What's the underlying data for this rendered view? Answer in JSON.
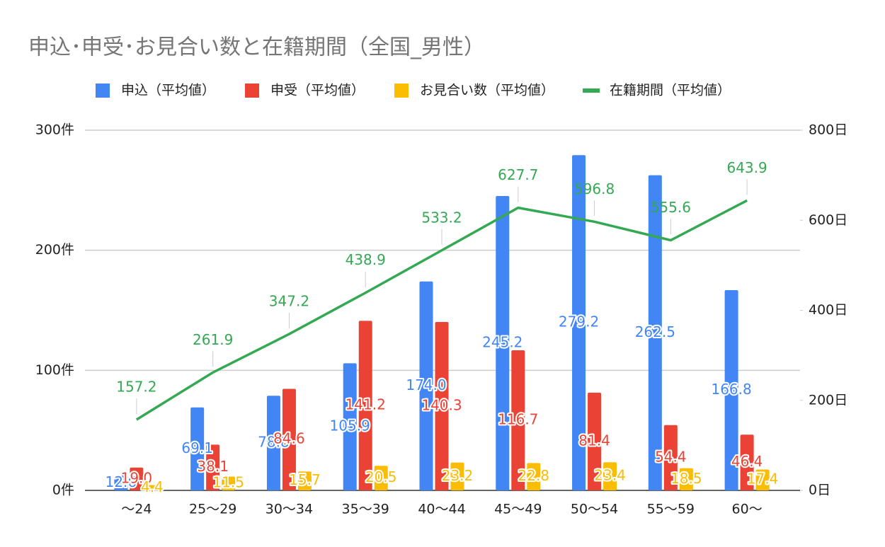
{
  "chart_data": {
    "type": "bar",
    "title": "申込･申受･お見合い数と在籍期間（全国_男性）",
    "categories": [
      "〜24",
      "25〜29",
      "30〜34",
      "35〜39",
      "40〜44",
      "45〜49",
      "50〜54",
      "55〜59",
      "60〜"
    ],
    "series": [
      {
        "name": "申込（平均値）",
        "type": "bar",
        "color": "#4285f4",
        "values": [
          12.6,
          69.1,
          78.8,
          105.9,
          174.0,
          245.2,
          279.2,
          262.5,
          166.8
        ],
        "value_labels": [
          "12.6",
          "69.1",
          "78.8",
          "105.9",
          "174.0",
          "245.2",
          "279.2",
          "262.5",
          "166.8"
        ]
      },
      {
        "name": "申受（平均値）",
        "type": "bar",
        "color": "#ea4335",
        "values": [
          19.0,
          38.1,
          84.6,
          141.2,
          140.3,
          116.7,
          81.4,
          54.4,
          46.4
        ],
        "value_labels": [
          "19.0",
          "38.1",
          "84.6",
          "141.2",
          "140.3",
          "116.7",
          "81.4",
          "54.4",
          "46.4"
        ]
      },
      {
        "name": "お見合い数（平均値）",
        "type": "bar",
        "color": "#fbbc04",
        "values": [
          4.4,
          11.5,
          15.7,
          20.5,
          23.2,
          22.8,
          23.4,
          18.5,
          17.4
        ],
        "value_labels": [
          "4.4",
          "11.5",
          "15.7",
          "20.5",
          "23.2",
          "22.8",
          "23.4",
          "18.5",
          "17.4"
        ]
      },
      {
        "name": "在籍期間（平均値）",
        "type": "line",
        "axis": "y2",
        "color": "#34a853",
        "values": [
          157.2,
          261.9,
          347.2,
          438.9,
          533.2,
          627.7,
          596.8,
          555.6,
          643.9
        ],
        "value_labels": [
          "157.2",
          "261.9",
          "347.2",
          "438.9",
          "533.2",
          "627.7",
          "596.8",
          "555.6",
          "643.9"
        ]
      }
    ],
    "ylim": [
      0,
      300
    ],
    "yticks": [
      {
        "value": 0,
        "label": "0件"
      },
      {
        "value": 100,
        "label": "100件"
      },
      {
        "value": 200,
        "label": "200件"
      },
      {
        "value": 300,
        "label": "300件"
      }
    ],
    "y2lim": [
      0,
      800
    ],
    "y2ticks": [
      {
        "value": 0,
        "label": "0日"
      },
      {
        "value": 200,
        "label": "200日"
      },
      {
        "value": 400,
        "label": "400日"
      },
      {
        "value": 600,
        "label": "600日"
      },
      {
        "value": 800,
        "label": "800日"
      }
    ],
    "grid": true,
    "legend": "top"
  }
}
